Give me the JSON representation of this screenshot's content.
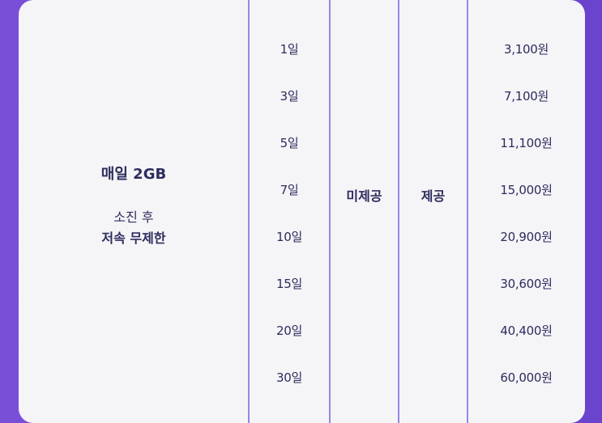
{
  "plan": {
    "title": "매일 2GB",
    "after_label": "소진 후",
    "after_value": "저속 무제한"
  },
  "columns": {
    "col_a_value": "미제공",
    "col_b_value": "제공"
  },
  "rows": [
    {
      "days": "1일",
      "price": "3,100원"
    },
    {
      "days": "3일",
      "price": "7,100원"
    },
    {
      "days": "5일",
      "price": "11,100원"
    },
    {
      "days": "7일",
      "price": "15,000원"
    },
    {
      "days": "10일",
      "price": "20,900원"
    },
    {
      "days": "15일",
      "price": "30,600원"
    },
    {
      "days": "20일",
      "price": "40,400원"
    },
    {
      "days": "30일",
      "price": "60,000원"
    }
  ],
  "colors": {
    "background": "#7a4fd8",
    "card": "#f5f5f7",
    "divider": "#9b84e6",
    "text": "#2d2c5e"
  }
}
